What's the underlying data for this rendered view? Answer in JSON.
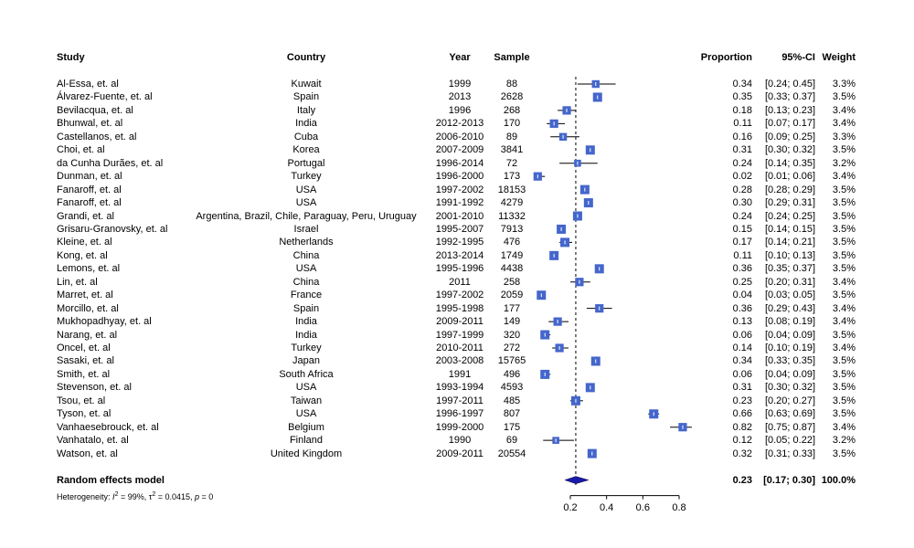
{
  "chart_data": {
    "type": "forest",
    "headers": {
      "study": "Study",
      "country": "Country",
      "year": "Year",
      "sample": "Sample",
      "proportion": "Proportion",
      "ci": "95%-CI",
      "weight": "Weight"
    },
    "studies": [
      {
        "study": "Al-Essa, et. al",
        "country": "Kuwait",
        "year": "1999",
        "sample": "88",
        "proportion": 0.34,
        "ci_low": 0.24,
        "ci_high": 0.45,
        "weight": "3.3%"
      },
      {
        "study": "Álvarez-Fuente, et. al",
        "country": "Spain",
        "year": "2013",
        "sample": "2628",
        "proportion": 0.35,
        "ci_low": 0.33,
        "ci_high": 0.37,
        "weight": "3.5%"
      },
      {
        "study": "Bevilacqua, et. al",
        "country": "Italy",
        "year": "1996",
        "sample": "268",
        "proportion": 0.18,
        "ci_low": 0.13,
        "ci_high": 0.23,
        "weight": "3.4%"
      },
      {
        "study": "Bhunwal, et. al",
        "country": "India",
        "year": "2012-2013",
        "sample": "170",
        "proportion": 0.11,
        "ci_low": 0.07,
        "ci_high": 0.17,
        "weight": "3.4%"
      },
      {
        "study": "Castellanos, et. al",
        "country": "Cuba",
        "year": "2006-2010",
        "sample": "89",
        "proportion": 0.16,
        "ci_low": 0.09,
        "ci_high": 0.25,
        "weight": "3.3%"
      },
      {
        "study": "Choi, et. al",
        "country": "Korea",
        "year": "2007-2009",
        "sample": "3841",
        "proportion": 0.31,
        "ci_low": 0.3,
        "ci_high": 0.32,
        "weight": "3.5%"
      },
      {
        "study": "da Cunha Durães, et. al",
        "country": "Portugal",
        "year": "1996-2014",
        "sample": "72",
        "proportion": 0.24,
        "ci_low": 0.14,
        "ci_high": 0.35,
        "weight": "3.2%"
      },
      {
        "study": "Dunman, et. al",
        "country": "Turkey",
        "year": "1996-2000",
        "sample": "173",
        "proportion": 0.02,
        "ci_low": 0.01,
        "ci_high": 0.06,
        "weight": "3.4%"
      },
      {
        "study": "Fanaroff, et. al",
        "country": "USA",
        "year": "1997-2002",
        "sample": "18153",
        "proportion": 0.28,
        "ci_low": 0.28,
        "ci_high": 0.29,
        "weight": "3.5%"
      },
      {
        "study": "Fanaroff, et. al",
        "country": "USA",
        "year": "1991-1992",
        "sample": "4279",
        "proportion": 0.3,
        "ci_low": 0.29,
        "ci_high": 0.31,
        "weight": "3.5%"
      },
      {
        "study": "Grandi, et. al",
        "country": "Argentina, Brazil, Chile, Paraguay, Peru, Uruguay",
        "year": "2001-2010",
        "sample": "11332",
        "proportion": 0.24,
        "ci_low": 0.24,
        "ci_high": 0.25,
        "weight": "3.5%"
      },
      {
        "study": "Grisaru-Granovsky, et. al",
        "country": "Israel",
        "year": "1995-2007",
        "sample": "7913",
        "proportion": 0.15,
        "ci_low": 0.14,
        "ci_high": 0.15,
        "weight": "3.5%"
      },
      {
        "study": "Kleine, et. al",
        "country": "Netherlands",
        "year": "1992-1995",
        "sample": "476",
        "proportion": 0.17,
        "ci_low": 0.14,
        "ci_high": 0.21,
        "weight": "3.5%"
      },
      {
        "study": "Kong, et. al",
        "country": "China",
        "year": "2013-2014",
        "sample": "1749",
        "proportion": 0.11,
        "ci_low": 0.1,
        "ci_high": 0.13,
        "weight": "3.5%"
      },
      {
        "study": "Lemons, et. al",
        "country": "USA",
        "year": "1995-1996",
        "sample": "4438",
        "proportion": 0.36,
        "ci_low": 0.35,
        "ci_high": 0.37,
        "weight": "3.5%"
      },
      {
        "study": "Lin, et. al",
        "country": "China",
        "year": "2011",
        "sample": "258",
        "proportion": 0.25,
        "ci_low": 0.2,
        "ci_high": 0.31,
        "weight": "3.4%"
      },
      {
        "study": "Marret, et. al",
        "country": "France",
        "year": "1997-2002",
        "sample": "2059",
        "proportion": 0.04,
        "ci_low": 0.03,
        "ci_high": 0.05,
        "weight": "3.5%"
      },
      {
        "study": "Morcillo, et. al",
        "country": "Spain",
        "year": "1995-1998",
        "sample": "177",
        "proportion": 0.36,
        "ci_low": 0.29,
        "ci_high": 0.43,
        "weight": "3.4%"
      },
      {
        "study": "Mukhopadhyay, et. al",
        "country": "India",
        "year": "2009-2011",
        "sample": "149",
        "proportion": 0.13,
        "ci_low": 0.08,
        "ci_high": 0.19,
        "weight": "3.4%"
      },
      {
        "study": "Narang, et. al",
        "country": "India",
        "year": "1997-1999",
        "sample": "320",
        "proportion": 0.06,
        "ci_low": 0.04,
        "ci_high": 0.09,
        "weight": "3.5%"
      },
      {
        "study": "Oncel, et. al",
        "country": "Turkey",
        "year": "2010-2011",
        "sample": "272",
        "proportion": 0.14,
        "ci_low": 0.1,
        "ci_high": 0.19,
        "weight": "3.4%"
      },
      {
        "study": "Sasaki, et. al",
        "country": "Japan",
        "year": "2003-2008",
        "sample": "15765",
        "proportion": 0.34,
        "ci_low": 0.33,
        "ci_high": 0.35,
        "weight": "3.5%"
      },
      {
        "study": "Smith, et. al",
        "country": "South Africa",
        "year": "1991",
        "sample": "496",
        "proportion": 0.06,
        "ci_low": 0.04,
        "ci_high": 0.09,
        "weight": "3.5%"
      },
      {
        "study": "Stevenson, et. al",
        "country": "USA",
        "year": "1993-1994",
        "sample": "4593",
        "proportion": 0.31,
        "ci_low": 0.3,
        "ci_high": 0.32,
        "weight": "3.5%"
      },
      {
        "study": "Tsou, et. al",
        "country": "Taiwan",
        "year": "1997-2011",
        "sample": "485",
        "proportion": 0.23,
        "ci_low": 0.2,
        "ci_high": 0.27,
        "weight": "3.5%"
      },
      {
        "study": "Tyson, et. al",
        "country": "USA",
        "year": "1996-1997",
        "sample": "807",
        "proportion": 0.66,
        "ci_low": 0.63,
        "ci_high": 0.69,
        "weight": "3.5%"
      },
      {
        "study": "Vanhaesebrouck, et. al",
        "country": "Belgium",
        "year": "1999-2000",
        "sample": "175",
        "proportion": 0.82,
        "ci_low": 0.75,
        "ci_high": 0.87,
        "weight": "3.4%"
      },
      {
        "study": "Vanhatalo, et. al",
        "country": "Finland",
        "year": "1990",
        "sample": "69",
        "proportion": 0.12,
        "ci_low": 0.05,
        "ci_high": 0.22,
        "weight": "3.2%"
      },
      {
        "study": "Watson, et. al",
        "country": "United Kingdom",
        "year": "2009-2011",
        "sample": "20554",
        "proportion": 0.32,
        "ci_low": 0.31,
        "ci_high": 0.33,
        "weight": "3.5%"
      }
    ],
    "summary": {
      "label": "Random effects model",
      "proportion": 0.23,
      "ci_low": 0.17,
      "ci_high": 0.3,
      "weight": "100.0%"
    },
    "heterogeneity": {
      "prefix": "Heterogeneity: ",
      "i2_symbol": "I",
      "i2_value": " = 99%, ",
      "tau2_symbol": "τ",
      "tau2_value": " = 0.0415, ",
      "p_symbol": "p",
      "p_value": " = 0"
    },
    "x_ticks": [
      0.2,
      0.4,
      0.6,
      0.8
    ],
    "x_tick_labels": [
      "0.2",
      "0.4",
      "0.6",
      "0.8"
    ],
    "xlim": [
      0.2,
      0.8
    ],
    "colors": {
      "box": "#4466cc",
      "line": "#000000",
      "diamond": "#1a1aaa"
    }
  }
}
